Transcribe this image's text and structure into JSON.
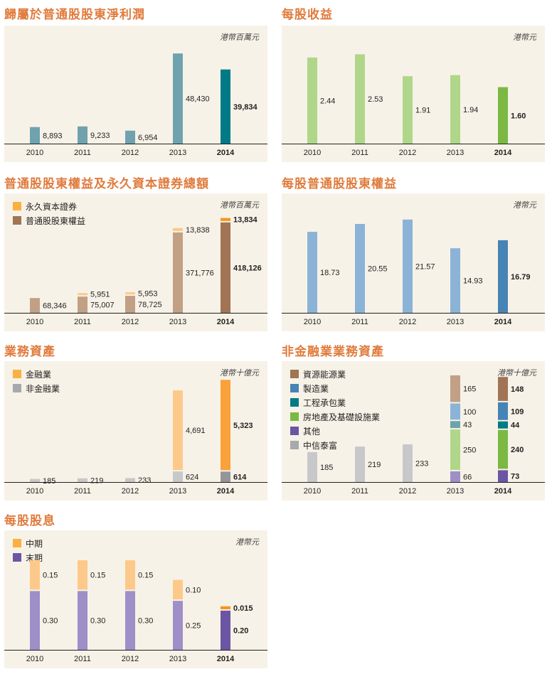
{
  "chart_data": [
    {
      "id": "profit",
      "type": "bar",
      "title": "歸屬於普通股股東淨利潤",
      "unit": "港幣百萬元",
      "categories": [
        "2010",
        "2011",
        "2012",
        "2013",
        "2014"
      ],
      "series": [
        {
          "values": [
            8893,
            9233,
            6954,
            48430,
            39834
          ],
          "labels": [
            "8,893",
            "9,233",
            "6,954",
            "48,430",
            "39,834"
          ],
          "colors": [
            "#6fa2ae",
            "#6fa2ae",
            "#6fa2ae",
            "#6fa2ae",
            "#007a86"
          ]
        }
      ],
      "ylim": [
        0,
        55000
      ]
    },
    {
      "id": "eps",
      "type": "bar",
      "title": "每股收益",
      "unit": "港幣元",
      "categories": [
        "2010",
        "2011",
        "2012",
        "2013",
        "2014"
      ],
      "series": [
        {
          "values": [
            2.44,
            2.53,
            1.91,
            1.94,
            1.6
          ],
          "labels": [
            "2.44",
            "2.53",
            "1.91",
            "1.94",
            "1.60"
          ],
          "colors": [
            "#b0d68a",
            "#b0d68a",
            "#b0d68a",
            "#b0d68a",
            "#7bb943"
          ]
        }
      ],
      "ylim": [
        0,
        2.9
      ]
    },
    {
      "id": "equity",
      "type": "bar",
      "title": "普通股股東權益及永久資本證券總額",
      "unit": "港幣百萬元",
      "categories": [
        "2010",
        "2011",
        "2012",
        "2013",
        "2014"
      ],
      "legend": [
        {
          "label": "永久資本證券",
          "color": "#fbb040"
        },
        {
          "label": "普通股股東權益",
          "color": "#a07454"
        }
      ],
      "series": [
        {
          "name": "普通股股東權益",
          "values": [
            68346,
            75007,
            78725,
            371776,
            418126
          ],
          "labels": [
            "68,346",
            "75,007",
            "78,725",
            "371,776",
            "418,126"
          ],
          "colors": [
            "#c1a085",
            "#c1a085",
            "#c1a085",
            "#c1a085",
            "#a07454"
          ]
        },
        {
          "name": "永久資本證券",
          "values": [
            0,
            5951,
            5953,
            13838,
            13834
          ],
          "labels": [
            "",
            "5,951",
            "5,953",
            "13,838",
            "13,834"
          ],
          "colors": [
            "#fdc98a",
            "#fdc98a",
            "#fdc98a",
            "#fdc98a",
            "#f7941d"
          ]
        }
      ],
      "ylim": [
        0,
        480000
      ]
    },
    {
      "id": "bvps",
      "type": "bar",
      "title": "每股普通股股東權益",
      "unit": "港幣元",
      "categories": [
        "2010",
        "2011",
        "2012",
        "2013",
        "2014"
      ],
      "series": [
        {
          "values": [
            18.73,
            20.55,
            21.57,
            14.93,
            16.79
          ],
          "labels": [
            "18.73",
            "20.55",
            "21.57",
            "14.93",
            "16.79"
          ],
          "colors": [
            "#8bb3d7",
            "#8bb3d7",
            "#8bb3d7",
            "#8bb3d7",
            "#4784b6"
          ]
        }
      ],
      "ylim": [
        0,
        24
      ]
    },
    {
      "id": "assets",
      "type": "bar",
      "title": "業務資產",
      "unit": "港幣十億元",
      "categories": [
        "2010",
        "2011",
        "2012",
        "2013",
        "2014"
      ],
      "legend": [
        {
          "label": "金融業",
          "color": "#fbb040"
        },
        {
          "label": "非金融業",
          "color": "#a7a9ac"
        }
      ],
      "series": [
        {
          "name": "非金融業",
          "values": [
            185,
            219,
            233,
            624,
            614
          ],
          "labels": [
            "185",
            "219",
            "233",
            "624",
            "614"
          ],
          "colors": [
            "#c7c8ca",
            "#c7c8ca",
            "#c7c8ca",
            "#c7c8ca",
            "#939598"
          ]
        },
        {
          "name": "金融業",
          "values": [
            0,
            0,
            0,
            4691,
            5323
          ],
          "labels": [
            "",
            "",
            "",
            "4,691",
            "5,323"
          ],
          "colors": [
            "#fdc98a",
            "#fdc98a",
            "#fdc98a",
            "#fdc98a",
            "#f9a13a"
          ]
        }
      ],
      "ylim": [
        0,
        6200
      ]
    },
    {
      "id": "nonfin",
      "type": "bar",
      "title": "非金融業業務資產",
      "unit": "港幣十億元",
      "categories": [
        "2010",
        "2011",
        "2012",
        "2013",
        "2014"
      ],
      "legend": [
        {
          "label": "資源能源業",
          "color": "#a07454"
        },
        {
          "label": "製造業",
          "color": "#4784b6"
        },
        {
          "label": "工程承包業",
          "color": "#007a86"
        },
        {
          "label": "房地產及基礎設施業",
          "color": "#7bb943"
        },
        {
          "label": "其他",
          "color": "#6a56a4"
        },
        {
          "label": "中信泰富",
          "color": "#a7a9ac"
        }
      ],
      "series": [
        {
          "name": "中信泰富",
          "values": [
            185,
            219,
            233,
            0,
            0
          ],
          "labels": [
            "185",
            "219",
            "233",
            "",
            ""
          ],
          "colors": [
            "#c7c8ca",
            "#c7c8ca",
            "#c7c8ca",
            "#c7c8ca",
            "#c7c8ca"
          ]
        },
        {
          "name": "其他",
          "values": [
            0,
            0,
            0,
            66,
            73
          ],
          "labels": [
            "",
            "",
            "",
            "66",
            "73"
          ],
          "colors": [
            "#9e8fc8",
            "#9e8fc8",
            "#9e8fc8",
            "#9e8fc8",
            "#6a56a4"
          ]
        },
        {
          "name": "房地產及基礎設施業",
          "values": [
            0,
            0,
            0,
            250,
            240
          ],
          "labels": [
            "",
            "",
            "",
            "250",
            "240"
          ],
          "colors": [
            "#b0d68a",
            "#b0d68a",
            "#b0d68a",
            "#b0d68a",
            "#7bb943"
          ]
        },
        {
          "name": "工程承包業",
          "values": [
            0,
            0,
            0,
            43,
            44
          ],
          "labels": [
            "",
            "",
            "",
            "43",
            "44"
          ],
          "colors": [
            "#6fa2ae",
            "#6fa2ae",
            "#6fa2ae",
            "#6fa2ae",
            "#007a86"
          ]
        },
        {
          "name": "製造業",
          "values": [
            0,
            0,
            0,
            100,
            109
          ],
          "labels": [
            "",
            "",
            "",
            "100",
            "109"
          ],
          "colors": [
            "#8bb3d7",
            "#8bb3d7",
            "#8bb3d7",
            "#8bb3d7",
            "#4784b6"
          ]
        },
        {
          "name": "資源能源業",
          "values": [
            0,
            0,
            0,
            165,
            148
          ],
          "labels": [
            "",
            "",
            "",
            "165",
            "148"
          ],
          "colors": [
            "#c1a085",
            "#c1a085",
            "#c1a085",
            "#c1a085",
            "#a07454"
          ]
        }
      ],
      "ylim": [
        0,
        650
      ]
    },
    {
      "id": "dps",
      "type": "bar",
      "title": "每股股息",
      "unit": "港幣元",
      "categories": [
        "2010",
        "2011",
        "2012",
        "2013",
        "2014"
      ],
      "legend": [
        {
          "label": "中期",
          "color": "#fbb040"
        },
        {
          "label": "末期",
          "color": "#6a56a4"
        }
      ],
      "series": [
        {
          "name": "末期",
          "values": [
            0.3,
            0.3,
            0.3,
            0.25,
            0.2
          ],
          "labels": [
            "0.30",
            "0.30",
            "0.30",
            "0.25",
            "0.20"
          ],
          "colors": [
            "#9e8fc8",
            "#9e8fc8",
            "#9e8fc8",
            "#9e8fc8",
            "#6a56a4"
          ]
        },
        {
          "name": "中期",
          "values": [
            0.15,
            0.15,
            0.15,
            0.1,
            0.015
          ],
          "labels": [
            "0.15",
            "0.15",
            "0.15",
            "0.10",
            "0.015"
          ],
          "colors": [
            "#fdc98a",
            "#fdc98a",
            "#fdc98a",
            "#fdc98a",
            "#f7941d"
          ]
        }
      ],
      "ylim": [
        0,
        0.53
      ]
    }
  ]
}
